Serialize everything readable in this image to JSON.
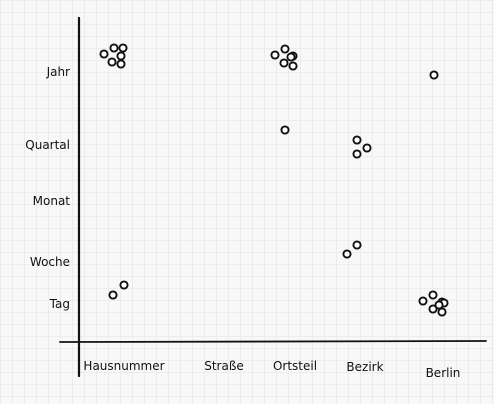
{
  "chart_data": {
    "type": "scatter",
    "title": "",
    "xlabel": "",
    "ylabel": "",
    "grid": true,
    "x_categories": [
      "Hausnummer",
      "Straße",
      "Ortsteil",
      "Bezirk",
      "Berlin"
    ],
    "y_categories": [
      "Tag",
      "Woche",
      "Monat",
      "Quartal",
      "Jahr"
    ],
    "points": [
      {
        "x": "Hausnummer",
        "y": "Jahr"
      },
      {
        "x": "Hausnummer",
        "y": "Jahr"
      },
      {
        "x": "Hausnummer",
        "y": "Jahr"
      },
      {
        "x": "Hausnummer",
        "y": "Jahr"
      },
      {
        "x": "Hausnummer",
        "y": "Jahr"
      },
      {
        "x": "Hausnummer",
        "y": "Jahr"
      },
      {
        "x": "Ortsteil",
        "y": "Jahr"
      },
      {
        "x": "Ortsteil",
        "y": "Jahr"
      },
      {
        "x": "Ortsteil",
        "y": "Jahr"
      },
      {
        "x": "Ortsteil",
        "y": "Jahr"
      },
      {
        "x": "Ortsteil",
        "y": "Jahr"
      },
      {
        "x": "Ortsteil",
        "y": "Jahr"
      },
      {
        "x": "Berlin",
        "y": "Jahr"
      },
      {
        "x": "Ortsteil",
        "y": "Quartal"
      },
      {
        "x": "Bezirk",
        "y": "Quartal"
      },
      {
        "x": "Bezirk",
        "y": "Quartal"
      },
      {
        "x": "Bezirk",
        "y": "Quartal"
      },
      {
        "x": "Bezirk",
        "y": "Woche"
      },
      {
        "x": "Bezirk",
        "y": "Woche"
      },
      {
        "x": "Hausnummer",
        "y": "Tag"
      },
      {
        "x": "Hausnummer",
        "y": "Tag"
      },
      {
        "x": "Berlin",
        "y": "Tag"
      },
      {
        "x": "Berlin",
        "y": "Tag"
      },
      {
        "x": "Berlin",
        "y": "Tag"
      },
      {
        "x": "Berlin",
        "y": "Tag"
      },
      {
        "x": "Berlin",
        "y": "Tag"
      },
      {
        "x": "Berlin",
        "y": "Tag"
      },
      {
        "x": "Berlin",
        "y": "Tag"
      }
    ],
    "colors": {
      "axis": "#111111",
      "marker_stroke": "#111111",
      "marker_fill": "#ffffff"
    }
  }
}
